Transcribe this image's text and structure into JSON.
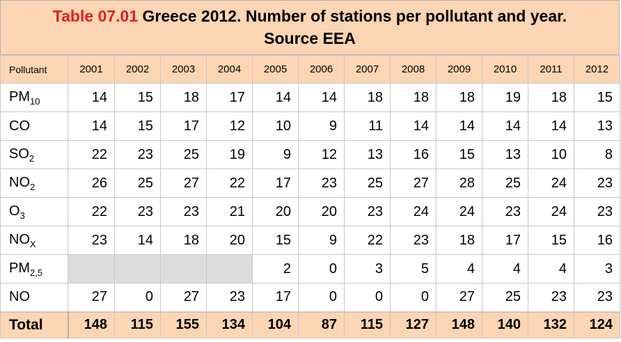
{
  "title": {
    "table_number": "Table 07.01",
    "line1_rest": " Greece 2012. Number of stations per pollutant and year.",
    "line2": "Source EEA"
  },
  "header": {
    "pollutant_label": "Pollutant",
    "years": [
      "2001",
      "2002",
      "2003",
      "2004",
      "2005",
      "2006",
      "2007",
      "2008",
      "2009",
      "2010",
      "2011",
      "2012"
    ]
  },
  "rows": [
    {
      "base": "PM",
      "sub": "10",
      "values": [
        "14",
        "15",
        "18",
        "17",
        "14",
        "14",
        "18",
        "18",
        "18",
        "19",
        "18",
        "15"
      ]
    },
    {
      "base": "CO",
      "sub": "",
      "values": [
        "14",
        "15",
        "17",
        "12",
        "10",
        "9",
        "11",
        "14",
        "14",
        "14",
        "14",
        "13"
      ]
    },
    {
      "base": "SO",
      "sub": "2",
      "values": [
        "22",
        "23",
        "25",
        "19",
        "9",
        "12",
        "13",
        "16",
        "15",
        "13",
        "10",
        "8"
      ]
    },
    {
      "base": "NO",
      "sub": "2",
      "values": [
        "26",
        "25",
        "27",
        "22",
        "17",
        "23",
        "25",
        "27",
        "28",
        "25",
        "24",
        "23"
      ]
    },
    {
      "base": "O",
      "sub": "3",
      "values": [
        "22",
        "23",
        "23",
        "21",
        "20",
        "20",
        "23",
        "24",
        "24",
        "23",
        "24",
        "23"
      ]
    },
    {
      "base": "NO",
      "sub": "X",
      "values": [
        "23",
        "14",
        "18",
        "20",
        "15",
        "9",
        "22",
        "23",
        "18",
        "17",
        "15",
        "16"
      ]
    },
    {
      "base": "PM",
      "sub": "2,5",
      "values": [
        "",
        "",
        "",
        "",
        "2",
        "0",
        "3",
        "5",
        "4",
        "4",
        "4",
        "3"
      ]
    },
    {
      "base": "NO",
      "sub": "",
      "values": [
        "27",
        "0",
        "27",
        "23",
        "17",
        "0",
        "0",
        "0",
        "27",
        "25",
        "23",
        "23"
      ]
    }
  ],
  "total": {
    "label": "Total",
    "values": [
      "148",
      "115",
      "155",
      "134",
      "104",
      "87",
      "115",
      "127",
      "148",
      "140",
      "132",
      "124"
    ]
  }
}
